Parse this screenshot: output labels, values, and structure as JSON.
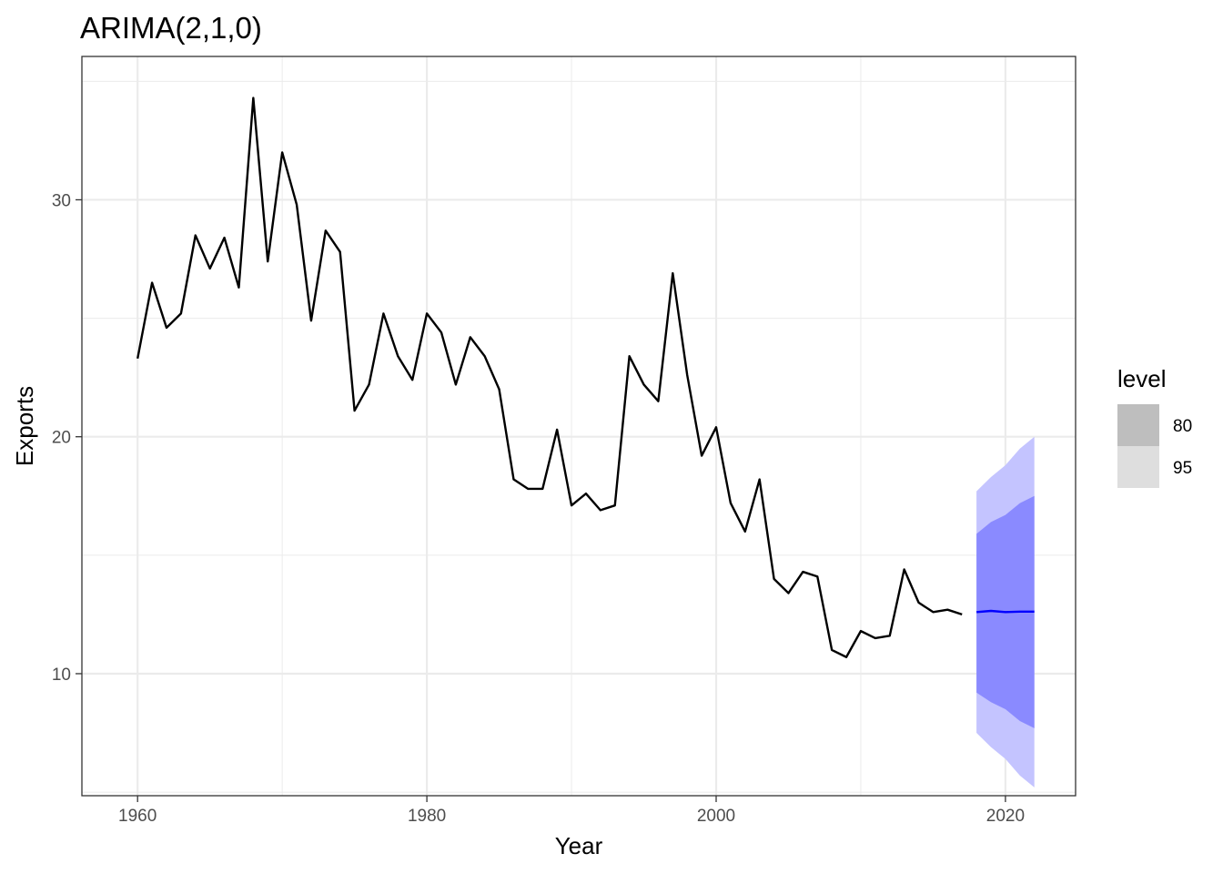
{
  "chart_data": {
    "type": "line",
    "title": "ARIMA(2,1,0)",
    "xlabel": "Year",
    "ylabel": "Exports",
    "xlim": [
      1956.15,
      2024.85
    ],
    "ylim": [
      4.85,
      36.05
    ],
    "x_ticks": [
      1960,
      1980,
      2000,
      2020
    ],
    "x_tick_labels": [
      "1960",
      "1980",
      "2000",
      "2020"
    ],
    "y_ticks": [
      10,
      20,
      30
    ],
    "y_tick_labels": [
      "10",
      "20",
      "30"
    ],
    "grid": true,
    "series": [
      {
        "color": "#000000",
        "x": [
          1960,
          1961,
          1962,
          1963,
          1964,
          1965,
          1966,
          1967,
          1968,
          1969,
          1970,
          1971,
          1972,
          1973,
          1974,
          1975,
          1976,
          1977,
          1978,
          1979,
          1980,
          1981,
          1982,
          1983,
          1984,
          1985,
          1986,
          1987,
          1988,
          1989,
          1990,
          1991,
          1992,
          1993,
          1994,
          1995,
          1996,
          1997,
          1998,
          1999,
          2000,
          2001,
          2002,
          2003,
          2004,
          2005,
          2006,
          2007,
          2008,
          2009,
          2010,
          2011,
          2012,
          2013,
          2014,
          2015,
          2016,
          2017
        ],
        "values": [
          23.3,
          26.5,
          24.6,
          25.2,
          28.5,
          27.1,
          28.4,
          26.3,
          34.3,
          27.4,
          32.0,
          29.8,
          24.9,
          28.7,
          27.8,
          21.1,
          22.2,
          25.2,
          23.4,
          22.4,
          25.2,
          24.4,
          22.2,
          24.2,
          23.4,
          22.0,
          18.2,
          17.8,
          17.8,
          20.3,
          17.1,
          17.6,
          16.9,
          17.1,
          23.4,
          22.2,
          21.5,
          26.9,
          22.6,
          19.2,
          20.4,
          17.2,
          16.0,
          18.2,
          14.0,
          13.4,
          14.3,
          14.1,
          11.0,
          10.7,
          11.8,
          11.5,
          11.6,
          14.4,
          13.0,
          12.6,
          12.7,
          12.5
        ]
      },
      {
        "color": "#0000ff",
        "x": [
          2018,
          2019,
          2020,
          2021,
          2022
        ],
        "values": [
          12.6,
          12.65,
          12.6,
          12.62,
          12.62
        ]
      }
    ],
    "intervals": [
      {
        "level": "95",
        "color": "#c4c4ff",
        "x": [
          2018,
          2019,
          2020,
          2021,
          2022
        ],
        "lower": [
          7.5,
          6.9,
          6.4,
          5.7,
          5.2
        ],
        "upper": [
          17.7,
          18.3,
          18.8,
          19.5,
          20.0
        ]
      },
      {
        "level": "80",
        "color": "#8a8aff",
        "x": [
          2018,
          2019,
          2020,
          2021,
          2022
        ],
        "lower": [
          9.2,
          8.8,
          8.5,
          8.0,
          7.7
        ],
        "upper": [
          15.9,
          16.4,
          16.7,
          17.2,
          17.5
        ]
      }
    ],
    "legend": {
      "title": "level",
      "position": "right",
      "items": [
        {
          "label": "80",
          "color": "#bebebe"
        },
        {
          "label": "95",
          "color": "#dedede"
        }
      ]
    }
  }
}
